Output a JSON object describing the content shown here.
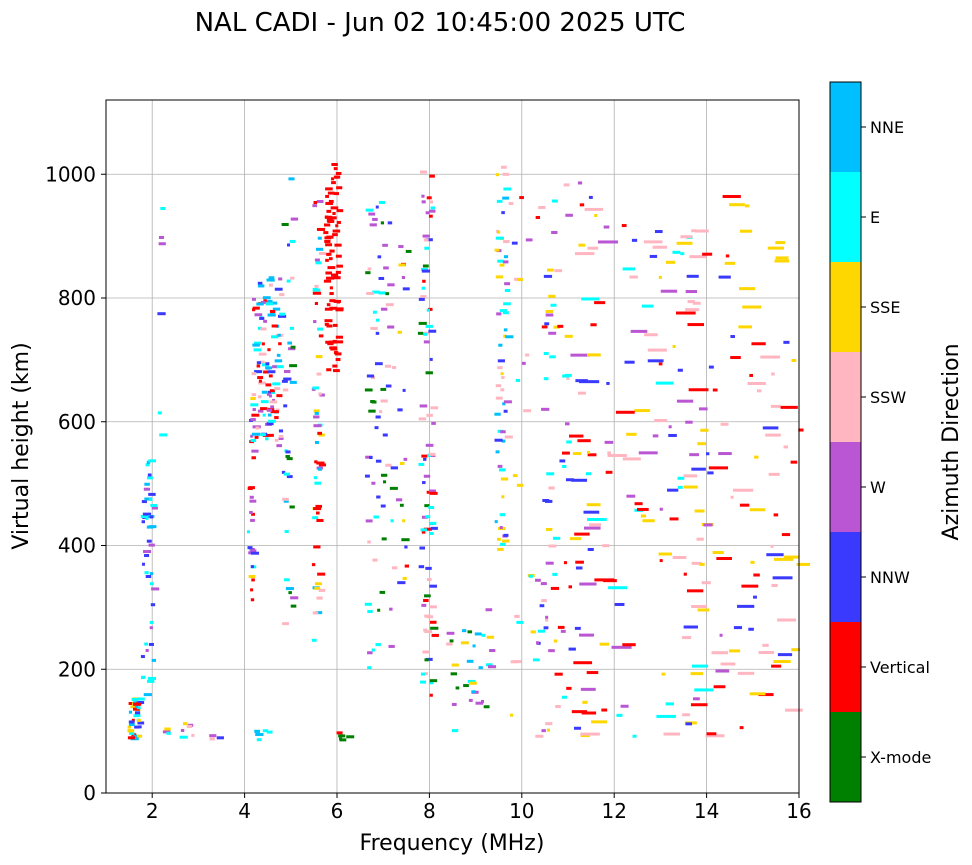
{
  "chart_data": {
    "type": "scatter",
    "title": "NAL CADI - Jun 02 10:45:00 2025 UTC",
    "xlabel": "Frequency (MHz)",
    "ylabel": "Virtual height (km)",
    "xlim": [
      1,
      16
    ],
    "ylim": [
      0,
      1120
    ],
    "xticks": [
      2,
      4,
      6,
      8,
      10,
      12,
      14,
      16
    ],
    "yticks": [
      0,
      200,
      400,
      600,
      800,
      1000
    ],
    "grid": true,
    "colorbar": {
      "label": "Azimuth Direction",
      "categories": [
        "X-mode",
        "Vertical",
        "NNW",
        "W",
        "SSW",
        "SSE",
        "E",
        "NNE"
      ],
      "colors": [
        "#008000",
        "#ff0000",
        "#3a3aff",
        "#ba55d3",
        "#ffb6c1",
        "#ffd700",
        "#00ffff",
        "#00bfff"
      ]
    },
    "traces": [
      {
        "freq_range": [
          1.45,
          1.7
        ],
        "height_range": [
          88,
          155
        ],
        "n": 40,
        "cats": [
          "NNE",
          "E",
          "Vertical",
          "SSE",
          "NNW"
        ]
      },
      {
        "freq_range": [
          1.75,
          2.0
        ],
        "height_range": [
          120,
          540
        ],
        "n": 45,
        "cats": [
          "NNW",
          "W",
          "NNE",
          "E"
        ]
      },
      {
        "freq_range": [
          2.0,
          3.4
        ],
        "height_range": [
          88,
          115
        ],
        "n": 12,
        "cats": [
          "SSE",
          "SSW",
          "W",
          "NNW",
          "E"
        ]
      },
      {
        "freq_range": [
          2.1,
          2.2
        ],
        "height_range": [
          510,
          950
        ],
        "n": 6,
        "cats": [
          "SSE",
          "NNW",
          "E",
          "W"
        ]
      },
      {
        "freq_range": [
          4.05,
          4.15
        ],
        "height_range": [
          300,
          650
        ],
        "n": 30,
        "cats": [
          "SSE",
          "Vertical",
          "NNW",
          "E",
          "W"
        ]
      },
      {
        "freq_range": [
          4.15,
          4.75
        ],
        "height_range": [
          560,
          840
        ],
        "n": 110,
        "cats": [
          "Vertical",
          "NNW",
          "NNE",
          "E",
          "W",
          "SSW"
        ]
      },
      {
        "freq_range": [
          4.2,
          4.5
        ],
        "height_range": [
          88,
          110
        ],
        "n": 6,
        "cats": [
          "E",
          "NNE"
        ]
      },
      {
        "freq_range": [
          4.8,
          5.0
        ],
        "height_range": [
          270,
          1005
        ],
        "n": 35,
        "cats": [
          "W",
          "NNW",
          "SSW",
          "NNE",
          "E",
          "X-mode"
        ]
      },
      {
        "freq_range": [
          5.45,
          5.62
        ],
        "height_range": [
          240,
          990
        ],
        "n": 55,
        "cats": [
          "SSE",
          "E",
          "NNE",
          "SSW",
          "W",
          "Vertical"
        ]
      },
      {
        "freq_range": [
          5.7,
          6.0
        ],
        "height_range": [
          680,
          1020
        ],
        "n": 80,
        "cats": [
          "Vertical"
        ]
      },
      {
        "freq_range": [
          5.95,
          6.25
        ],
        "height_range": [
          88,
          100
        ],
        "n": 5,
        "cats": [
          "Vertical",
          "SSE",
          "X-mode"
        ]
      },
      {
        "freq_range": [
          6.6,
          7.2
        ],
        "height_range": [
          200,
          960
        ],
        "n": 70,
        "cats": [
          "W",
          "NNW",
          "SSW",
          "E",
          "X-mode"
        ]
      },
      {
        "freq_range": [
          7.1,
          7.5
        ],
        "height_range": [
          300,
          900
        ],
        "n": 20,
        "cats": [
          "Vertical",
          "X-mode",
          "W",
          "NNW",
          "SSE"
        ]
      },
      {
        "freq_range": [
          7.75,
          8.05
        ],
        "height_range": [
          160,
          1015
        ],
        "n": 85,
        "cats": [
          "Vertical",
          "SSW",
          "W",
          "E",
          "NNW",
          "X-mode"
        ]
      },
      {
        "freq_range": [
          8.3,
          9.4
        ],
        "height_range": [
          88,
          300
        ],
        "n": 30,
        "cats": [
          "SSE",
          "X-mode",
          "NNE",
          "SSW",
          "W",
          "E"
        ]
      },
      {
        "freq_range": [
          9.4,
          9.65
        ],
        "height_range": [
          390,
          1015
        ],
        "n": 60,
        "cats": [
          "SSE",
          "NNE",
          "NNW",
          "E",
          "W",
          "SSW"
        ]
      },
      {
        "freq_range": [
          9.7,
          10.6
        ],
        "height_range": [
          88,
          1005
        ],
        "n": 40,
        "cats": [
          "Vertical",
          "SSW",
          "NNW",
          "W",
          "SSE",
          "E"
        ]
      },
      {
        "freq_range": [
          10.4,
          11.6
        ],
        "height_range": [
          88,
          990
        ],
        "n": 95,
        "cats": [
          "NNW",
          "W",
          "SSW",
          "SSE",
          "E",
          "Vertical"
        ]
      },
      {
        "freq_range": [
          11.6,
          13.8
        ],
        "height_range": [
          88,
          920
        ],
        "n": 90,
        "cats": [
          "SSE",
          "W",
          "SSW",
          "E",
          "NNW",
          "Vertical"
        ]
      },
      {
        "freq_range": [
          13.5,
          14.6
        ],
        "height_range": [
          90,
          975
        ],
        "n": 50,
        "cats": [
          "SSE",
          "W",
          "Vertical",
          "SSW",
          "NNW"
        ]
      },
      {
        "freq_range": [
          14.6,
          16.0
        ],
        "height_range": [
          90,
          980
        ],
        "n": 55,
        "cats": [
          "Vertical",
          "SSE",
          "SSW",
          "NNW"
        ]
      }
    ]
  }
}
